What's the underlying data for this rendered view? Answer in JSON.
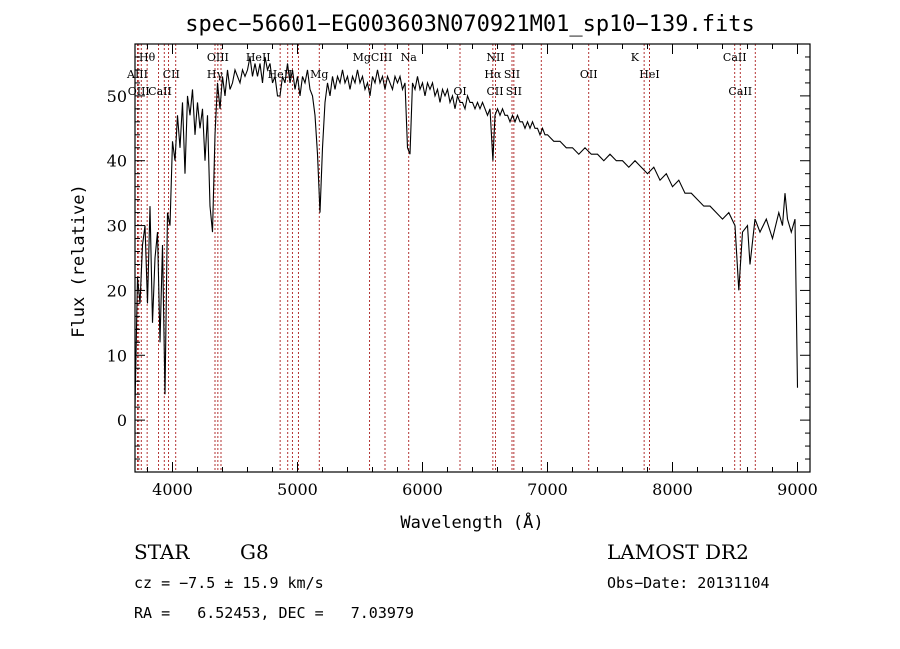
{
  "chart_data": {
    "type": "line",
    "title": "spec−56601−EG003603N070921M01_sp10−139.fits",
    "xlabel": "Wavelength (Å)",
    "ylabel": "Flux (relative)",
    "xlim": [
      3700,
      9100
    ],
    "ylim": [
      -8,
      58
    ],
    "x_ticks": [
      4000,
      5000,
      6000,
      7000,
      8000,
      9000
    ],
    "y_ticks": [
      0,
      10,
      20,
      30,
      40,
      50
    ],
    "grid": false,
    "series": [
      {
        "points": [
          [
            3700,
            2
          ],
          [
            3720,
            22
          ],
          [
            3740,
            18
          ],
          [
            3760,
            27
          ],
          [
            3780,
            30
          ],
          [
            3800,
            18
          ],
          [
            3820,
            33
          ],
          [
            3840,
            15
          ],
          [
            3860,
            25
          ],
          [
            3880,
            29
          ],
          [
            3900,
            12
          ],
          [
            3920,
            27
          ],
          [
            3940,
            4
          ],
          [
            3960,
            32
          ],
          [
            3980,
            30
          ],
          [
            4000,
            43
          ],
          [
            4020,
            40
          ],
          [
            4040,
            47
          ],
          [
            4060,
            42
          ],
          [
            4080,
            49
          ],
          [
            4100,
            38
          ],
          [
            4120,
            50
          ],
          [
            4140,
            47
          ],
          [
            4160,
            51
          ],
          [
            4180,
            44
          ],
          [
            4200,
            49
          ],
          [
            4220,
            45
          ],
          [
            4240,
            48
          ],
          [
            4260,
            40
          ],
          [
            4280,
            47
          ],
          [
            4300,
            33
          ],
          [
            4320,
            29
          ],
          [
            4340,
            44
          ],
          [
            4360,
            52
          ],
          [
            4380,
            48
          ],
          [
            4400,
            53
          ],
          [
            4420,
            50
          ],
          [
            4440,
            54
          ],
          [
            4460,
            51
          ],
          [
            4480,
            52
          ],
          [
            4500,
            54
          ],
          [
            4520,
            53
          ],
          [
            4540,
            52
          ],
          [
            4560,
            54
          ],
          [
            4580,
            53
          ],
          [
            4600,
            54
          ],
          [
            4620,
            56
          ],
          [
            4640,
            53
          ],
          [
            4660,
            55
          ],
          [
            4680,
            53
          ],
          [
            4700,
            55
          ],
          [
            4720,
            52
          ],
          [
            4740,
            56
          ],
          [
            4760,
            54
          ],
          [
            4780,
            55
          ],
          [
            4800,
            52
          ],
          [
            4820,
            53
          ],
          [
            4840,
            50
          ],
          [
            4860,
            50
          ],
          [
            4880,
            53
          ],
          [
            4900,
            52
          ],
          [
            4920,
            55
          ],
          [
            4940,
            52
          ],
          [
            4960,
            54
          ],
          [
            4980,
            51
          ],
          [
            5000,
            53
          ],
          [
            5020,
            50
          ],
          [
            5040,
            53
          ],
          [
            5060,
            52
          ],
          [
            5080,
            54
          ],
          [
            5100,
            51
          ],
          [
            5120,
            50
          ],
          [
            5140,
            47
          ],
          [
            5160,
            41
          ],
          [
            5180,
            32
          ],
          [
            5200,
            42
          ],
          [
            5220,
            49
          ],
          [
            5240,
            52
          ],
          [
            5260,
            50
          ],
          [
            5280,
            53
          ],
          [
            5300,
            51
          ],
          [
            5320,
            53
          ],
          [
            5340,
            52
          ],
          [
            5360,
            54
          ],
          [
            5380,
            52
          ],
          [
            5400,
            53
          ],
          [
            5420,
            51
          ],
          [
            5440,
            53
          ],
          [
            5460,
            52
          ],
          [
            5480,
            54
          ],
          [
            5500,
            52
          ],
          [
            5520,
            53
          ],
          [
            5540,
            51
          ],
          [
            5560,
            52
          ],
          [
            5580,
            50
          ],
          [
            5600,
            53
          ],
          [
            5620,
            52
          ],
          [
            5640,
            54
          ],
          [
            5660,
            52
          ],
          [
            5680,
            53
          ],
          [
            5700,
            51
          ],
          [
            5720,
            53
          ],
          [
            5740,
            52
          ],
          [
            5760,
            51
          ],
          [
            5780,
            53
          ],
          [
            5800,
            52
          ],
          [
            5820,
            53
          ],
          [
            5840,
            51
          ],
          [
            5860,
            52
          ],
          [
            5880,
            42
          ],
          [
            5900,
            41
          ],
          [
            5920,
            52
          ],
          [
            5940,
            51
          ],
          [
            5960,
            53
          ],
          [
            5980,
            51
          ],
          [
            6000,
            52
          ],
          [
            6020,
            50
          ],
          [
            6040,
            52
          ],
          [
            6060,
            51
          ],
          [
            6080,
            52
          ],
          [
            6100,
            50
          ],
          [
            6120,
            51
          ],
          [
            6140,
            49
          ],
          [
            6160,
            51
          ],
          [
            6180,
            50
          ],
          [
            6200,
            51
          ],
          [
            6220,
            49
          ],
          [
            6240,
            50
          ],
          [
            6260,
            48
          ],
          [
            6280,
            50
          ],
          [
            6300,
            49
          ],
          [
            6320,
            49
          ],
          [
            6340,
            48
          ],
          [
            6360,
            50
          ],
          [
            6380,
            49
          ],
          [
            6400,
            49
          ],
          [
            6420,
            48
          ],
          [
            6440,
            49
          ],
          [
            6460,
            48
          ],
          [
            6480,
            49
          ],
          [
            6500,
            48
          ],
          [
            6520,
            47
          ],
          [
            6540,
            48
          ],
          [
            6563,
            40
          ],
          [
            6580,
            47
          ],
          [
            6600,
            48
          ],
          [
            6620,
            47
          ],
          [
            6640,
            48
          ],
          [
            6660,
            47
          ],
          [
            6680,
            47
          ],
          [
            6700,
            46
          ],
          [
            6720,
            47
          ],
          [
            6740,
            46
          ],
          [
            6760,
            47
          ],
          [
            6780,
            46
          ],
          [
            6800,
            46
          ],
          [
            6820,
            45
          ],
          [
            6840,
            46
          ],
          [
            6860,
            45
          ],
          [
            6880,
            46
          ],
          [
            6900,
            45
          ],
          [
            6920,
            45
          ],
          [
            6940,
            44
          ],
          [
            6960,
            45
          ],
          [
            6980,
            44
          ],
          [
            7000,
            44
          ],
          [
            7050,
            43
          ],
          [
            7100,
            43
          ],
          [
            7150,
            42
          ],
          [
            7200,
            42
          ],
          [
            7250,
            41
          ],
          [
            7300,
            42
          ],
          [
            7350,
            41
          ],
          [
            7400,
            41
          ],
          [
            7450,
            40
          ],
          [
            7500,
            41
          ],
          [
            7550,
            40
          ],
          [
            7600,
            40
          ],
          [
            7650,
            39
          ],
          [
            7700,
            40
          ],
          [
            7750,
            39
          ],
          [
            7800,
            38
          ],
          [
            7850,
            39
          ],
          [
            7900,
            37
          ],
          [
            7950,
            38
          ],
          [
            8000,
            36
          ],
          [
            8050,
            37
          ],
          [
            8100,
            35
          ],
          [
            8150,
            35
          ],
          [
            8200,
            34
          ],
          [
            8250,
            33
          ],
          [
            8300,
            33
          ],
          [
            8350,
            32
          ],
          [
            8400,
            31
          ],
          [
            8450,
            32
          ],
          [
            8500,
            30
          ],
          [
            8530,
            20
          ],
          [
            8560,
            29
          ],
          [
            8600,
            30
          ],
          [
            8620,
            24
          ],
          [
            8660,
            31
          ],
          [
            8700,
            29
          ],
          [
            8750,
            31
          ],
          [
            8800,
            28
          ],
          [
            8850,
            32
          ],
          [
            8880,
            30
          ],
          [
            8900,
            35
          ],
          [
            8920,
            31
          ],
          [
            8950,
            29
          ],
          [
            8980,
            31
          ],
          [
            9000,
            5
          ]
        ]
      }
    ],
    "lines_row1": [
      {
        "label": "Hθ",
        "x": 3797
      },
      {
        "label": "OIII",
        "x": 4363
      },
      {
        "label": "HeII",
        "x": 4686
      },
      {
        "label": "MgCIII",
        "x": 5600
      },
      {
        "label": "Na",
        "x": 5890
      },
      {
        "label": "NII",
        "x": 6584
      },
      {
        "label": "K",
        "x": 7699
      },
      {
        "label": "CaII",
        "x": 8498
      }
    ],
    "lines_row2": [
      {
        "label": "AIII",
        "x": 3720
      },
      {
        "label": "CII",
        "x": 3990
      },
      {
        "label": "Hγ",
        "x": 4340
      },
      {
        "label": "HeII",
        "x": 4860
      },
      {
        "label": "Mg",
        "x": 5174
      },
      {
        "label": "Hα",
        "x": 6563
      },
      {
        "label": "SII",
        "x": 6716
      },
      {
        "label": "OII",
        "x": 7330
      },
      {
        "label": "HeI",
        "x": 7816
      }
    ],
    "lines_row3": [
      {
        "label": "OIII",
        "x": 3730
      },
      {
        "label": "CaII",
        "x": 3900
      },
      {
        "label": "OI",
        "x": 6300
      },
      {
        "label": "SII",
        "x": 6731
      },
      {
        "label": "CII",
        "x": 6580
      },
      {
        "label": "CaII",
        "x": 8542
      }
    ],
    "line_markers": [
      3720,
      3730,
      3750,
      3797,
      3889,
      3934,
      3969,
      4026,
      4340,
      4363,
      4388,
      4861,
      4922,
      4959,
      5007,
      5174,
      5577,
      5700,
      5890,
      6300,
      6563,
      6584,
      6716,
      6731,
      6950,
      7330,
      7773,
      7816,
      8498,
      8542,
      8662
    ]
  },
  "info": {
    "object_class": "STAR",
    "subclass": "G8",
    "cz": "cz = −7.5 ± 15.9 km/s",
    "coords": "RA =   6.52453, DEC =   7.03979",
    "survey": "LAMOST DR2",
    "obs_date": "Obs−Date: 20131104"
  }
}
